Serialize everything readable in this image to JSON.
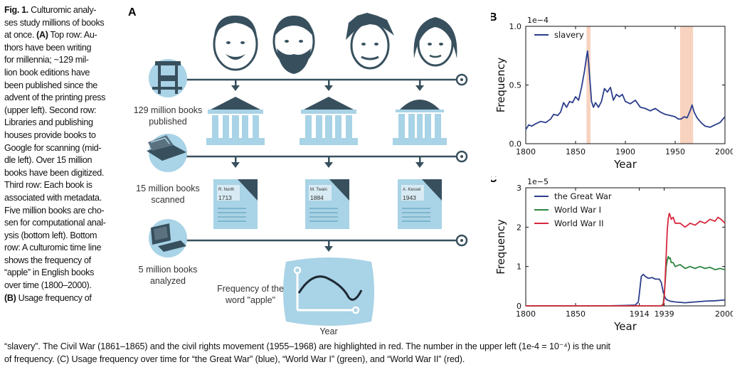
{
  "caption_left": {
    "lines": [
      "Culturomic analy-",
      "ses study millions of books",
      "at once. (A) Top row: Au-",
      "thors have been writing",
      "for millennia; ~129 mil-",
      "lion book editions have",
      "been published since the",
      "advent of the printing press",
      "(upper left). Second row:",
      "Libraries and publishing",
      "houses provide books to",
      "Google for scanning (mid-",
      "dle left). Over 15 million",
      "books have been digitized.",
      "Third row: Each book is",
      "associated with metadata.",
      "Five million books are cho-",
      "sen for computational anal-",
      "ysis (bottom left). Bottom",
      "row: A culturomic time line",
      "shows the frequency of",
      "“apple” in English books",
      "over time (1800–2000).",
      "(B) Usage frequency of"
    ],
    "fig_label": "Fig. 1."
  },
  "caption_bottom": {
    "line1": "“slavery”. The Civil War (1861–1865) and the civil rights movement (1955–1968) are highlighted in red. The number in the upper left (1e-4 = 10⁻⁴) is the unit",
    "line2": "of frequency. (C) Usage frequency over time for “the Great War” (blue), “World War I” (green), and “World War II” (red)."
  },
  "panel_a": {
    "letter": "A",
    "row_labels": {
      "published_1": "129 million books",
      "published_2": "published",
      "scanned_1": "15 million books",
      "scanned_2": "scanned",
      "analyzed_1": "5 million books",
      "analyzed_2": "analyzed"
    },
    "books": [
      {
        "author": "R. North",
        "year": "1713"
      },
      {
        "author": "M. Twain",
        "year": "1884"
      },
      {
        "author": "A. Kessel",
        "year": "1943"
      }
    ],
    "freq_label_1": "Frequency of the",
    "freq_label_2": "word \"apple\"",
    "year_label": "Year",
    "colors": {
      "light_blue": "#a9d3e6",
      "dark_slate": "#38505e",
      "mid_blue": "#7fb6cf"
    }
  },
  "chart_data": [
    {
      "panel": "B",
      "type": "line",
      "multiplier_label": "1e−4",
      "xlabel": "Year",
      "ylabel": "Frequency",
      "xlim": [
        1800,
        2000
      ],
      "ylim": [
        0.0,
        1.0
      ],
      "xticks": [
        1800,
        1850,
        1900,
        1950,
        2000
      ],
      "xtick_labels": [
        "1800",
        "1850",
        "1900",
        "1950",
        "2000"
      ],
      "yticks": [
        0.0,
        0.5,
        1.0
      ],
      "ytick_labels": [
        "0.0",
        "0.5",
        "1.0"
      ],
      "highlights": [
        {
          "from": 1861,
          "to": 1865,
          "color": "#f6cbb4"
        },
        {
          "from": 1955,
          "to": 1968,
          "color": "#f6cbb4"
        }
      ],
      "legend_position": "top-left",
      "series": [
        {
          "name": "slavery",
          "color": "#2c3e8c",
          "x": [
            1800,
            1803,
            1806,
            1810,
            1815,
            1820,
            1825,
            1828,
            1832,
            1835,
            1838,
            1841,
            1844,
            1847,
            1850,
            1853,
            1856,
            1859,
            1861,
            1862,
            1863,
            1865,
            1866,
            1868,
            1870,
            1873,
            1876,
            1879,
            1882,
            1885,
            1888,
            1891,
            1894,
            1897,
            1900,
            1905,
            1910,
            1915,
            1920,
            1925,
            1930,
            1935,
            1940,
            1945,
            1950,
            1953,
            1956,
            1959,
            1962,
            1965,
            1967,
            1969,
            1972,
            1976,
            1980,
            1985,
            1990,
            1995,
            2000
          ],
          "y": [
            0.12,
            0.16,
            0.15,
            0.17,
            0.19,
            0.18,
            0.21,
            0.25,
            0.24,
            0.27,
            0.35,
            0.31,
            0.36,
            0.35,
            0.4,
            0.37,
            0.48,
            0.62,
            0.74,
            0.79,
            0.7,
            0.48,
            0.36,
            0.31,
            0.35,
            0.31,
            0.36,
            0.47,
            0.44,
            0.48,
            0.37,
            0.42,
            0.4,
            0.42,
            0.36,
            0.34,
            0.37,
            0.31,
            0.3,
            0.28,
            0.3,
            0.27,
            0.25,
            0.24,
            0.23,
            0.21,
            0.21,
            0.23,
            0.22,
            0.28,
            0.33,
            0.27,
            0.22,
            0.18,
            0.15,
            0.14,
            0.16,
            0.18,
            0.23
          ]
        }
      ]
    },
    {
      "panel": "C",
      "type": "line",
      "multiplier_label": "1e−5",
      "xlabel": "Year",
      "ylabel": "Frequency",
      "xlim": [
        1800,
        2000
      ],
      "ylim": [
        0,
        3
      ],
      "xticks": [
        1800,
        1850,
        1914,
        1939,
        2000
      ],
      "xtick_labels": [
        "1800",
        "1850",
        "1914",
        "1939",
        "2000"
      ],
      "yticks": [
        0,
        1,
        2,
        3
      ],
      "ytick_labels": [
        "0",
        "1",
        "2",
        "3"
      ],
      "legend_position": "top-left",
      "series": [
        {
          "name": "the Great War",
          "color": "#2c3e8c",
          "x": [
            1800,
            1880,
            1900,
            1910,
            1913,
            1914,
            1916,
            1918,
            1920,
            1923,
            1927,
            1930,
            1934,
            1936,
            1938,
            1940,
            1942,
            1945,
            1950,
            1960,
            1970,
            1980,
            1990,
            2000
          ],
          "y": [
            0,
            0,
            0.01,
            0.02,
            0.1,
            0.3,
            0.75,
            0.8,
            0.75,
            0.7,
            0.72,
            0.68,
            0.68,
            0.6,
            0.35,
            0.2,
            0.15,
            0.12,
            0.1,
            0.08,
            0.1,
            0.12,
            0.13,
            0.15
          ]
        },
        {
          "name": "World War I",
          "color": "#2e8540",
          "x": [
            1800,
            1930,
            1936,
            1938,
            1939,
            1940,
            1941,
            1942,
            1943,
            1944,
            1945,
            1946,
            1948,
            1950,
            1955,
            1960,
            1965,
            1970,
            1975,
            1980,
            1985,
            1990,
            1995,
            2000
          ],
          "y": [
            0,
            0,
            0,
            0.05,
            0.3,
            0.6,
            1.0,
            1.15,
            1.25,
            1.2,
            1.22,
            1.1,
            1.1,
            1.0,
            1.05,
            0.95,
            1.0,
            0.95,
            1.0,
            0.95,
            0.98,
            0.92,
            0.95,
            0.92
          ]
        },
        {
          "name": "World War II",
          "color": "#d6283e",
          "x": [
            1800,
            1936,
            1938,
            1939,
            1940,
            1941,
            1942,
            1943,
            1944,
            1945,
            1946,
            1948,
            1950,
            1955,
            1960,
            1965,
            1970,
            1975,
            1980,
            1985,
            1990,
            1993,
            1996,
            2000
          ],
          "y": [
            0,
            0,
            0.02,
            0.2,
            0.7,
            1.3,
            1.9,
            2.2,
            2.35,
            2.3,
            2.2,
            2.25,
            2.1,
            2.1,
            2.0,
            2.1,
            2.05,
            2.15,
            2.1,
            2.2,
            2.15,
            2.25,
            2.2,
            2.1
          ]
        }
      ]
    }
  ]
}
